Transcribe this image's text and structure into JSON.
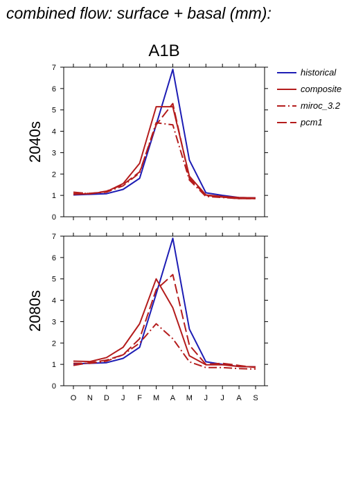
{
  "page": {
    "title": "combined flow: surface + basal (mm):"
  },
  "chart_data": {
    "type": "line",
    "title": "A1B",
    "categories": [
      "O",
      "N",
      "D",
      "J",
      "F",
      "M",
      "A",
      "M",
      "J",
      "J",
      "A",
      "S"
    ],
    "ylim": [
      0,
      7
    ],
    "yticks": [
      0,
      1,
      2,
      3,
      4,
      5,
      6,
      7
    ],
    "grid": false,
    "legend_position": "right",
    "legend": [
      {
        "name": "historical",
        "color": "#1c1cb4",
        "dash": "solid"
      },
      {
        "name": "composite",
        "color": "#b41c1c",
        "dash": "solid"
      },
      {
        "name": "miroc_3.2",
        "color": "#b41c1c",
        "dash": "dashdot"
      },
      {
        "name": "pcm1",
        "color": "#b41c1c",
        "dash": "dashed"
      }
    ],
    "panels": [
      {
        "ylabel": "2040s",
        "series": [
          {
            "name": "historical",
            "values": [
              1.02,
              1.05,
              1.08,
              1.28,
              1.8,
              4.3,
              6.9,
              2.65,
              1.12,
              1.0,
              0.9,
              0.88
            ]
          },
          {
            "name": "composite",
            "values": [
              1.05,
              1.08,
              1.18,
              1.55,
              2.5,
              5.15,
              5.15,
              1.9,
              1.02,
              0.95,
              0.9,
              0.88
            ]
          },
          {
            "name": "miroc_3.2",
            "values": [
              1.08,
              1.1,
              1.15,
              1.45,
              2.05,
              4.4,
              4.3,
              1.72,
              0.95,
              0.9,
              0.85,
              0.85
            ]
          },
          {
            "name": "pcm1",
            "values": [
              1.15,
              1.08,
              1.2,
              1.5,
              2.1,
              4.3,
              5.3,
              1.8,
              1.0,
              0.92,
              0.85,
              0.85
            ]
          }
        ]
      },
      {
        "ylabel": "2080s",
        "series": [
          {
            "name": "historical",
            "values": [
              1.02,
              1.05,
              1.08,
              1.28,
              1.8,
              4.3,
              6.9,
              2.65,
              1.12,
              1.0,
              0.9,
              0.88
            ]
          },
          {
            "name": "composite",
            "values": [
              1.15,
              1.13,
              1.32,
              1.8,
              2.9,
              5.0,
              3.65,
              1.4,
              0.98,
              0.98,
              0.9,
              0.88
            ]
          },
          {
            "name": "miroc_3.2",
            "values": [
              1.05,
              1.05,
              1.15,
              1.45,
              2.0,
              2.9,
              2.2,
              1.12,
              0.85,
              0.85,
              0.8,
              0.78
            ]
          },
          {
            "name": "pcm1",
            "values": [
              0.95,
              1.08,
              1.2,
              1.45,
              2.2,
              4.5,
              5.2,
              1.9,
              1.0,
              1.05,
              0.95,
              0.85
            ]
          }
        ]
      }
    ]
  }
}
